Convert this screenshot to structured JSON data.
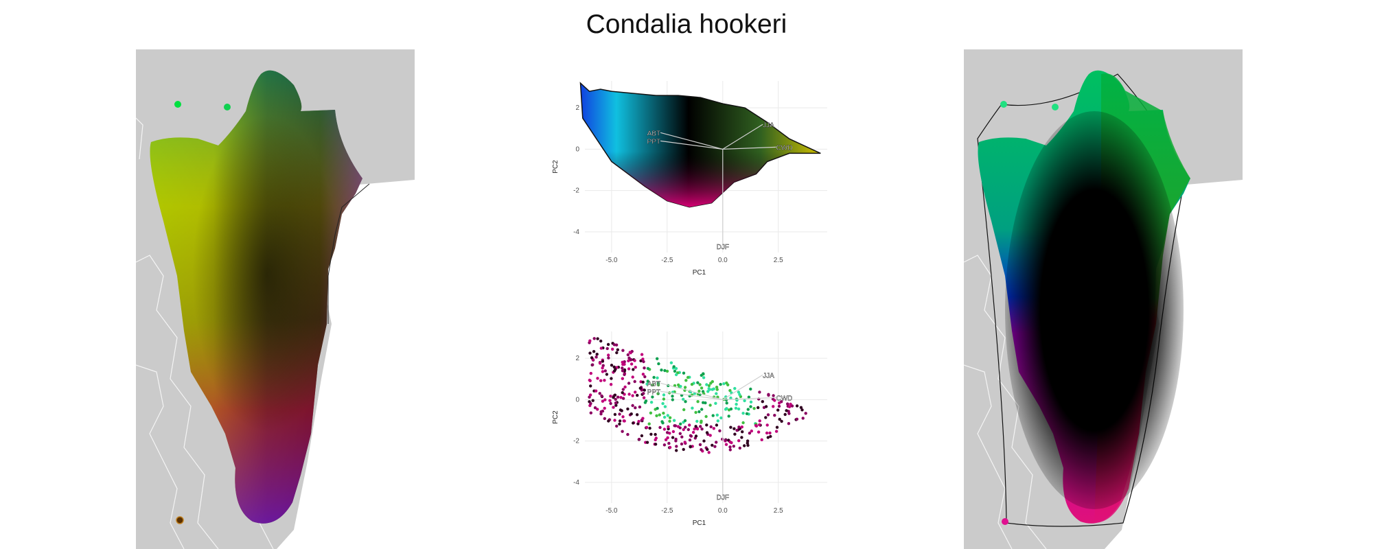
{
  "title": "Condalia hookeri",
  "colors": {
    "map_background": "#cbcbcb",
    "grid": "#e9e9e9",
    "axis_text": "#4d4d4d"
  },
  "chart_data": [
    {
      "type": "scatter",
      "xlabel": "PC1",
      "ylabel": "PC2",
      "xticks": [
        -5.0,
        -2.5,
        0.0,
        2.5
      ],
      "xtick_labels": [
        "-5.0",
        "-2.5",
        "0.0",
        "2.5"
      ],
      "yticks": [
        2,
        0,
        -2,
        -4
      ],
      "ytick_labels": [
        "2",
        "0",
        "-2",
        "-4"
      ],
      "xlim": [
        -6.2,
        4.7
      ],
      "ylim": [
        -5.0,
        3.3
      ],
      "grid": true,
      "origin": [
        0.0,
        0.0
      ],
      "loadings": [
        {
          "label": "ABT",
          "x": -2.8,
          "y": 0.8
        },
        {
          "label": "PPT",
          "x": -2.8,
          "y": 0.4
        },
        {
          "label": "JJA",
          "x": 1.8,
          "y": 1.2
        },
        {
          "label": "CWD",
          "x": 2.4,
          "y": 0.1
        },
        {
          "label": "DJF",
          "x": 0.0,
          "y": -4.7
        }
      ],
      "hull_outline": [
        [
          -6.4,
          3.2
        ],
        [
          -6.0,
          2.8
        ],
        [
          -5.5,
          2.9
        ],
        [
          -5.0,
          2.8
        ],
        [
          -4.0,
          2.7
        ],
        [
          -3.0,
          2.6
        ],
        [
          -2.0,
          2.6
        ],
        [
          -1.0,
          2.5
        ],
        [
          0.0,
          2.2
        ],
        [
          1.0,
          2.0
        ],
        [
          2.0,
          1.3
        ],
        [
          3.0,
          0.5
        ],
        [
          4.4,
          -0.2
        ],
        [
          3.0,
          -0.2
        ],
        [
          2.0,
          -0.6
        ],
        [
          1.5,
          -1.2
        ],
        [
          0.5,
          -1.6
        ],
        [
          -0.5,
          -2.6
        ],
        [
          -1.5,
          -2.8
        ],
        [
          -2.5,
          -2.5
        ],
        [
          -3.5,
          -1.8
        ],
        [
          -5.0,
          -0.6
        ],
        [
          -6.3,
          1.5
        ]
      ]
    },
    {
      "type": "scatter",
      "xlabel": "PC1",
      "ylabel": "PC2",
      "xticks": [
        -5.0,
        -2.5,
        0.0,
        2.5
      ],
      "xtick_labels": [
        "-5.0",
        "-2.5",
        "0.0",
        "2.5"
      ],
      "yticks": [
        2,
        0,
        -2,
        -4
      ],
      "ytick_labels": [
        "2",
        "0",
        "-2",
        "-4"
      ],
      "xlim": [
        -6.2,
        4.7
      ],
      "ylim": [
        -5.0,
        3.3
      ],
      "grid": true,
      "origin": [
        0.0,
        0.0
      ],
      "loadings": [
        {
          "label": "ABT",
          "x": -2.8,
          "y": 0.8
        },
        {
          "label": "PPT",
          "x": -2.8,
          "y": 0.4
        },
        {
          "label": "JJA",
          "x": 1.8,
          "y": 1.2
        },
        {
          "label": "CWD",
          "x": 2.4,
          "y": 0.1
        },
        {
          "label": "DJF",
          "x": 0.0,
          "y": -4.7
        }
      ]
    }
  ]
}
